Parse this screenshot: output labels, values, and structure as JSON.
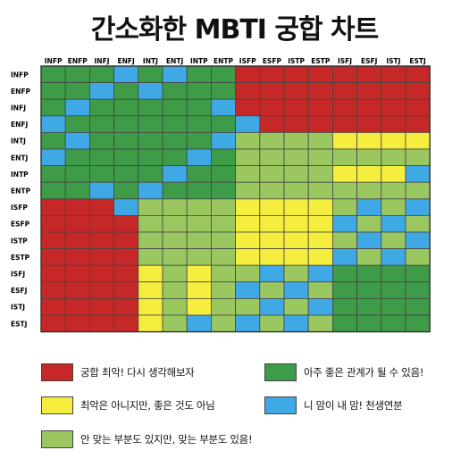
{
  "chart_data": {
    "type": "heatmap",
    "title": "간소화한 MBTI 궁합 차트",
    "x_labels": [
      "INFP",
      "ENFP",
      "INFJ",
      "ENFJ",
      "INTJ",
      "ENTJ",
      "INTP",
      "ENTP",
      "ISFP",
      "ESFP",
      "ISTP",
      "ESTP",
      "ISFJ",
      "ESFJ",
      "ISTJ",
      "ESTJ"
    ],
    "y_labels": [
      "INFP",
      "ENFP",
      "INFJ",
      "ENFJ",
      "INTJ",
      "ENTJ",
      "INTP",
      "ENTP",
      "ISFP",
      "ESFP",
      "ISTP",
      "ESTP",
      "ISFJ",
      "ESFJ",
      "ISTJ",
      "ESTJ"
    ],
    "categories": [
      {
        "id": 1,
        "label": "궁합 최악! 다시 생각해보자",
        "color": "#c62828"
      },
      {
        "id": 2,
        "label": "아주 좋은 관계가 될 수 있음!",
        "color": "#3e9b48"
      },
      {
        "id": 3,
        "label": "최악은 아니지만, 좋은 것도 아님",
        "color": "#f6ee3f"
      },
      {
        "id": 4,
        "label": "니 맘이 내 맘! 천생연분",
        "color": "#3fa9e6"
      },
      {
        "id": 5,
        "label": "안 맞는 부분도 있지만, 맞는 부분도 있음!",
        "color": "#9bc760"
      }
    ],
    "matrix": [
      [
        2,
        2,
        2,
        4,
        2,
        4,
        2,
        2,
        1,
        1,
        1,
        1,
        1,
        1,
        1,
        1
      ],
      [
        2,
        2,
        4,
        2,
        4,
        2,
        2,
        2,
        1,
        1,
        1,
        1,
        1,
        1,
        1,
        1
      ],
      [
        2,
        4,
        2,
        2,
        2,
        2,
        2,
        4,
        1,
        1,
        1,
        1,
        1,
        1,
        1,
        1
      ],
      [
        4,
        2,
        2,
        2,
        2,
        2,
        2,
        2,
        4,
        1,
        1,
        1,
        1,
        1,
        1,
        1
      ],
      [
        2,
        4,
        2,
        2,
        2,
        2,
        2,
        4,
        5,
        5,
        5,
        5,
        3,
        3,
        3,
        3
      ],
      [
        4,
        2,
        2,
        2,
        2,
        2,
        4,
        2,
        5,
        5,
        5,
        5,
        5,
        5,
        5,
        5
      ],
      [
        2,
        2,
        2,
        2,
        2,
        4,
        2,
        2,
        5,
        5,
        5,
        5,
        3,
        3,
        3,
        4
      ],
      [
        2,
        2,
        4,
        2,
        4,
        2,
        2,
        2,
        5,
        5,
        5,
        5,
        5,
        5,
        5,
        5
      ],
      [
        1,
        1,
        1,
        4,
        5,
        5,
        5,
        5,
        3,
        3,
        3,
        3,
        5,
        4,
        5,
        4
      ],
      [
        1,
        1,
        1,
        1,
        5,
        5,
        5,
        5,
        3,
        3,
        3,
        3,
        4,
        5,
        4,
        5
      ],
      [
        1,
        1,
        1,
        1,
        5,
        5,
        5,
        5,
        3,
        3,
        3,
        3,
        5,
        4,
        5,
        4
      ],
      [
        1,
        1,
        1,
        1,
        5,
        5,
        5,
        5,
        3,
        3,
        3,
        3,
        4,
        5,
        4,
        5
      ],
      [
        1,
        1,
        1,
        1,
        3,
        5,
        3,
        5,
        5,
        4,
        5,
        4,
        2,
        2,
        2,
        2
      ],
      [
        1,
        1,
        1,
        1,
        3,
        5,
        3,
        5,
        4,
        5,
        4,
        5,
        2,
        2,
        2,
        2
      ],
      [
        1,
        1,
        1,
        1,
        3,
        5,
        3,
        5,
        5,
        4,
        5,
        4,
        2,
        2,
        2,
        2
      ],
      [
        1,
        1,
        1,
        1,
        3,
        5,
        4,
        5,
        4,
        5,
        4,
        5,
        2,
        2,
        2,
        2
      ]
    ],
    "grid": true,
    "legend_position": "bottom"
  }
}
